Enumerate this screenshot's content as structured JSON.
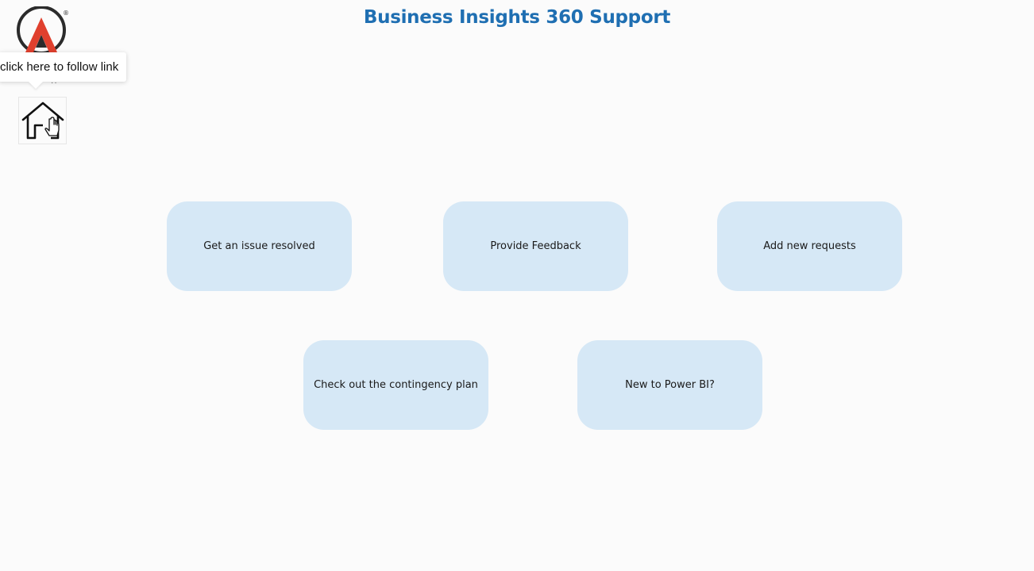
{
  "header": {
    "title": "Business Insights 360 Support"
  },
  "logo": {
    "icon": "company-logo-a-mark",
    "colors": [
      "#2b2b2b",
      "#e0402e",
      "#f08a3c"
    ]
  },
  "tooltip": {
    "text": "click here to follow link",
    "more": "··"
  },
  "home": {
    "icon": "home-icon"
  },
  "cards": [
    {
      "label": "Get an issue resolved"
    },
    {
      "label": "Provide Feedback"
    },
    {
      "label": "Add new requests"
    },
    {
      "label": "Check out the contingency plan"
    },
    {
      "label": "New to Power BI?"
    }
  ],
  "theme": {
    "title_color": "#1f6fb2",
    "card_color": "#d6e8f6",
    "background": "#fbfbfb"
  }
}
